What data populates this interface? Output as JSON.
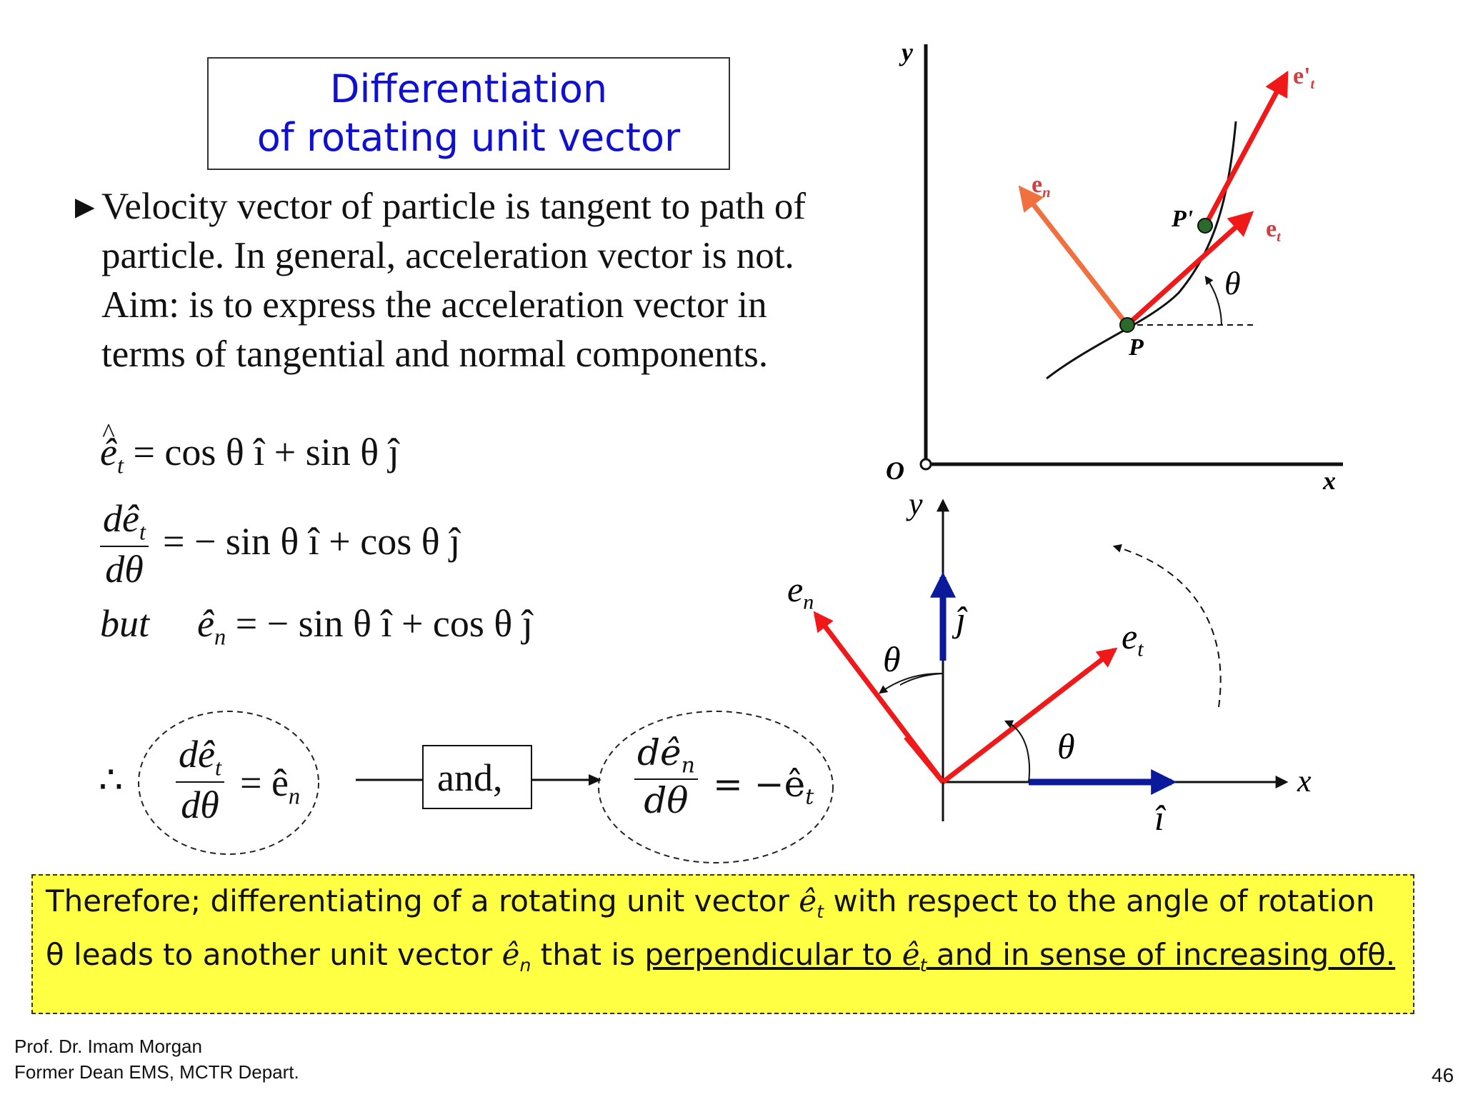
{
  "title": {
    "line1": "Differentiation",
    "line2": "of rotating unit vector"
  },
  "bullet": {
    "marker": "►",
    "text": "Velocity vector of particle is tangent to path of particle.  In general, acceleration vector is not.  Aim: is to express the acceleration vector in terms of tangential and normal components."
  },
  "equations": {
    "eq1": {
      "lhs": "ê",
      "lhs_sub": "t",
      "rhs": "= cos θ î + sin θ ĵ"
    },
    "eq2": {
      "num": "dê",
      "num_sub": "t",
      "den": "dθ",
      "rhs": "= − sin θ î + cos θ ĵ"
    },
    "eq3": {
      "prefix": "but",
      "lhs": "ê",
      "lhs_sub": "n",
      "rhs": "= − sin θ î + cos θ ĵ"
    },
    "therefore_symbol": "∴",
    "result1": {
      "num": "dê",
      "num_sub": "t",
      "den": "dθ",
      "rhs": "= ê",
      "rhs_sub": "n"
    },
    "connector": "and,",
    "result2": {
      "num": "dê",
      "num_sub": "n",
      "den": "dθ",
      "rhs": "= −ê",
      "rhs_sub": "t"
    }
  },
  "top_diagram": {
    "axis_y": "y",
    "axis_x": "x",
    "origin": "O",
    "point_p": "P",
    "point_p_prime": "P'",
    "vec_en": "e",
    "vec_en_sub": "n",
    "vec_et": "e",
    "vec_et_sub": "t",
    "vec_et_prime": "e'",
    "vec_et_prime_sub": "t",
    "angle": "θ"
  },
  "bottom_diagram": {
    "axis_y": "y",
    "axis_x": "x",
    "unit_i": "î",
    "unit_j": "ĵ",
    "vec_en": "e",
    "vec_en_sub": "n",
    "vec_et": "e",
    "vec_et_sub": "t",
    "angle1": "θ",
    "angle2": "θ"
  },
  "note": {
    "part1": "Therefore; differentiating of a rotating unit vector ",
    "sym1": "ê",
    "sym1_sub": "t",
    "part2": " with respect to the angle of rotation θ  leads to another unit vector ",
    "sym2": "ê",
    "sym2_sub": "n",
    "part3": " that is ",
    "underline1": "perpendicular to ",
    "sym3": "ê",
    "sym3_sub": "t",
    "underline2": " and in sense of increasing ofθ."
  },
  "footer": {
    "author": "Prof. Dr. Imam Morgan",
    "position": "Former Dean EMS, MCTR Depart.",
    "page_number": "46"
  },
  "colors": {
    "title": "#1010d0",
    "note_bg": "#ffff44",
    "red_vector": "#f01818",
    "orange_vector": "#f07040",
    "unit_vector": "#0a1a9a"
  }
}
